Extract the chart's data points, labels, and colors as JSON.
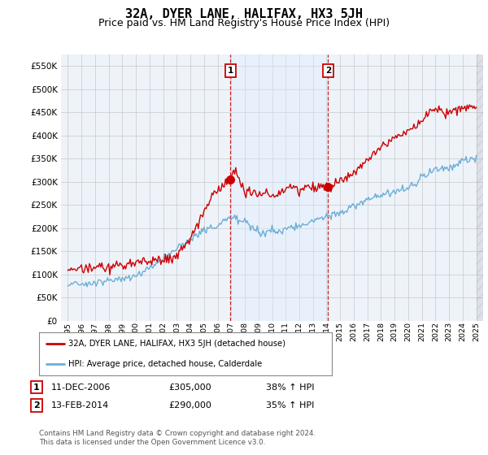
{
  "title": "32A, DYER LANE, HALIFAX, HX3 5JH",
  "subtitle": "Price paid vs. HM Land Registry's House Price Index (HPI)",
  "legend_line1": "32A, DYER LANE, HALIFAX, HX3 5JH (detached house)",
  "legend_line2": "HPI: Average price, detached house, Calderdale",
  "annotation1_date": "11-DEC-2006",
  "annotation1_price": "£305,000",
  "annotation1_hpi": "38% ↑ HPI",
  "annotation1_year": 2006.95,
  "annotation1_value": 305000,
  "annotation2_date": "13-FEB-2014",
  "annotation2_price": "£290,000",
  "annotation2_hpi": "35% ↑ HPI",
  "annotation2_year": 2014.12,
  "annotation2_value": 290000,
  "hpi_color": "#6baed6",
  "price_color": "#cc0000",
  "annotation_color": "#cc0000",
  "background_color": "#ffffff",
  "grid_color": "#c8c8c8",
  "shade_color": "#ddeeff",
  "ylim": [
    0,
    575000
  ],
  "yticks": [
    0,
    50000,
    100000,
    150000,
    200000,
    250000,
    300000,
    350000,
    400000,
    450000,
    500000,
    550000
  ],
  "footer": "Contains HM Land Registry data © Crown copyright and database right 2024.\nThis data is licensed under the Open Government Licence v3.0.",
  "title_fontsize": 11,
  "subtitle_fontsize": 9
}
